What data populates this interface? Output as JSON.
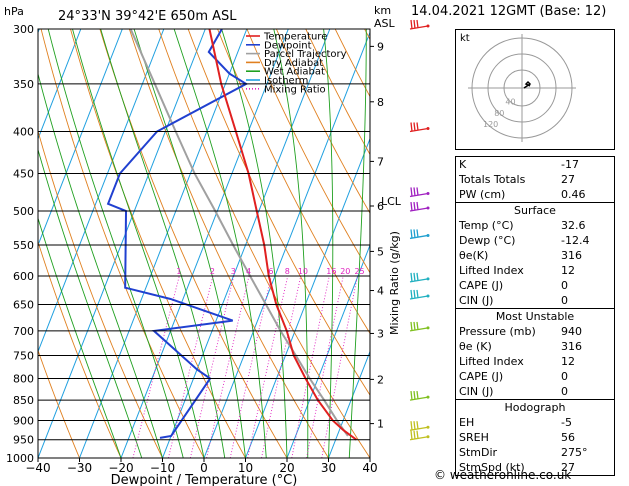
{
  "header": {
    "location": "24°33'N  39°42'E  650m  ASL",
    "datetime": "14.04.2021  12GMT  (Base: 12)",
    "hpa_label": "hPa",
    "km_label": "km",
    "asl_label": "ASL"
  },
  "chart_data": {
    "type": "skew-t",
    "xlabel": "Dewpoint / Temperature (°C)",
    "ylabel_right": "Mixing Ratio (g/kg)",
    "x_ticks": [
      -40,
      -30,
      -20,
      -10,
      0,
      10,
      20,
      30,
      40
    ],
    "x_tick_labels": [
      "−40",
      "−30",
      "−20",
      "−10",
      "0",
      "10",
      "20",
      "30",
      "40"
    ],
    "pressure_levels": [
      300,
      350,
      400,
      450,
      500,
      550,
      600,
      650,
      700,
      750,
      800,
      850,
      900,
      950,
      1000
    ],
    "km_ticks": [
      {
        "km": "1",
        "p": 908
      },
      {
        "km": "2",
        "p": 802
      },
      {
        "km": "3",
        "p": 705
      },
      {
        "km": "4",
        "p": 625
      },
      {
        "km": "5",
        "p": 560
      },
      {
        "km": "6",
        "p": 493
      },
      {
        "km": "7",
        "p": 435
      },
      {
        "km": "8",
        "p": 368
      },
      {
        "km": "9",
        "p": 315
      }
    ],
    "lcl_label": "LCL",
    "lcl_pressure": 486,
    "mixing_ratio_labels": [
      "1",
      "2",
      "3",
      "4",
      "6",
      "8",
      "10",
      "16",
      "20",
      "25"
    ],
    "mixing_ratio_values": [
      1,
      2,
      3,
      4,
      6,
      8,
      10,
      16,
      20,
      25
    ],
    "legend": [
      {
        "name": "Temperature",
        "color": "#e02020"
      },
      {
        "name": "Dewpoint",
        "color": "#2040d0"
      },
      {
        "name": "Parcel Trajectory",
        "color": "#a0a0a0"
      },
      {
        "name": "Dry Adiabat",
        "color": "#e08020"
      },
      {
        "name": "Wet Adiabat",
        "color": "#20a020"
      },
      {
        "name": "Isotherm",
        "color": "#20a0e0"
      },
      {
        "name": "Mixing Ratio",
        "color": "#e020c0"
      }
    ],
    "temperature": [
      {
        "p": 950,
        "t": 35
      },
      {
        "p": 925,
        "t": 31
      },
      {
        "p": 900,
        "t": 27.5
      },
      {
        "p": 850,
        "t": 22
      },
      {
        "p": 800,
        "t": 17
      },
      {
        "p": 750,
        "t": 12
      },
      {
        "p": 700,
        "t": 8
      },
      {
        "p": 650,
        "t": 3
      },
      {
        "p": 600,
        "t": -1.5
      },
      {
        "p": 550,
        "t": -5.5
      },
      {
        "p": 500,
        "t": -10.5
      },
      {
        "p": 450,
        "t": -16
      },
      {
        "p": 400,
        "t": -23
      },
      {
        "p": 350,
        "t": -31
      },
      {
        "p": 300,
        "t": -39
      }
    ],
    "dewpoint": [
      {
        "p": 945,
        "t": -12.5
      },
      {
        "p": 940,
        "t": -10
      },
      {
        "p": 800,
        "t": -6
      },
      {
        "p": 780,
        "t": -10
      },
      {
        "p": 700,
        "t": -24
      },
      {
        "p": 680,
        "t": -6
      },
      {
        "p": 640,
        "t": -23
      },
      {
        "p": 620,
        "t": -35
      },
      {
        "p": 500,
        "t": -42
      },
      {
        "p": 490,
        "t": -47
      },
      {
        "p": 450,
        "t": -47
      },
      {
        "p": 400,
        "t": -42
      },
      {
        "p": 350,
        "t": -25
      },
      {
        "p": 340,
        "t": -30
      },
      {
        "p": 320,
        "t": -37
      },
      {
        "p": 300,
        "t": -36
      }
    ],
    "parcel": [
      {
        "p": 940,
        "t": 32.6
      },
      {
        "p": 900,
        "t": 28.5
      },
      {
        "p": 850,
        "t": 23.5
      },
      {
        "p": 800,
        "t": 18
      },
      {
        "p": 750,
        "t": 12.5
      },
      {
        "p": 700,
        "t": 6.5
      },
      {
        "p": 650,
        "t": 0.5
      },
      {
        "p": 600,
        "t": -6
      },
      {
        "p": 550,
        "t": -13
      },
      {
        "p": 500,
        "t": -20.5
      },
      {
        "p": 450,
        "t": -29
      },
      {
        "p": 400,
        "t": -37.5
      },
      {
        "p": 350,
        "t": -47
      },
      {
        "p": 300,
        "t": -58
      }
    ],
    "wind_barbs": [
      {
        "p": 300,
        "color": "#e02020"
      },
      {
        "p": 400,
        "color": "#e02020"
      },
      {
        "p": 480,
        "color": "#a020c0"
      },
      {
        "p": 500,
        "color": "#a020c0"
      },
      {
        "p": 540,
        "color": "#20a0d0"
      },
      {
        "p": 610,
        "color": "#20b0c0"
      },
      {
        "p": 640,
        "color": "#20b0c0"
      },
      {
        "p": 700,
        "color": "#80c020"
      },
      {
        "p": 850,
        "color": "#80c020"
      },
      {
        "p": 925,
        "color": "#c0c020"
      },
      {
        "p": 950,
        "color": "#c0c020"
      }
    ]
  },
  "hodograph": {
    "label": "kt",
    "ring_labels": [
      "40",
      "80",
      "120"
    ],
    "points": [
      {
        "u": 2,
        "v": 0
      },
      {
        "u": 5,
        "v": 2
      },
      {
        "u": 8,
        "v": 4
      },
      {
        "u": 6,
        "v": 6
      },
      {
        "u": 4,
        "v": 4
      },
      {
        "u": 8,
        "v": 2
      }
    ]
  },
  "indices": {
    "rows": [
      {
        "label": "K",
        "value": "-17"
      },
      {
        "label": "Totals Totals",
        "value": "27"
      },
      {
        "label": "PW (cm)",
        "value": "0.46"
      }
    ]
  },
  "surface": {
    "title": "Surface",
    "rows": [
      {
        "label": "Temp (°C)",
        "value": "32.6"
      },
      {
        "label": "Dewp (°C)",
        "value": "-12.4"
      },
      {
        "label": "θe(K)",
        "value": "316"
      },
      {
        "label": "Lifted Index",
        "value": "12"
      },
      {
        "label": "CAPE (J)",
        "value": "0"
      },
      {
        "label": "CIN (J)",
        "value": "0"
      }
    ]
  },
  "unstable": {
    "title": "Most Unstable",
    "rows": [
      {
        "label": "Pressure (mb)",
        "value": "940"
      },
      {
        "label": "θe (K)",
        "value": "316"
      },
      {
        "label": "Lifted Index",
        "value": "12"
      },
      {
        "label": "CAPE (J)",
        "value": "0"
      },
      {
        "label": "CIN (J)",
        "value": "0"
      }
    ]
  },
  "hodo_stats": {
    "title": "Hodograph",
    "rows": [
      {
        "label": "EH",
        "value": "-5"
      },
      {
        "label": "SREH",
        "value": "56"
      },
      {
        "label": "StmDir",
        "value": "275°"
      },
      {
        "label": "StmSpd (kt)",
        "value": "27"
      }
    ]
  },
  "copyright": "© weatheronline.co.uk"
}
